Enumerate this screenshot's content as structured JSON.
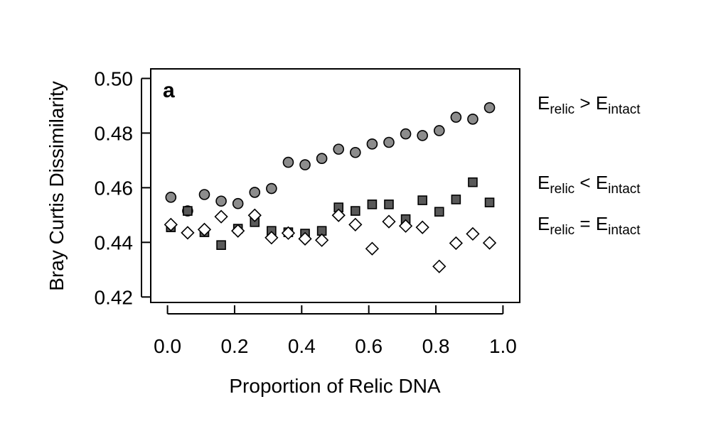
{
  "chart_data": {
    "type": "scatter",
    "panel_label": "a",
    "xlabel": "Proportion of Relic DNA",
    "ylabel": "Bray Curtis Dissimilarity",
    "xlim": [
      -0.05,
      1.05
    ],
    "ylim": [
      0.418,
      0.5035
    ],
    "x_ticks": [
      "0.0",
      "0.2",
      "0.4",
      "0.6",
      "0.8",
      "1.0"
    ],
    "y_ticks": [
      "0.42",
      "0.44",
      "0.46",
      "0.48",
      "0.50"
    ],
    "grid": false,
    "legend_placement": "right",
    "x": [
      0.01,
      0.06,
      0.11,
      0.16,
      0.21,
      0.26,
      0.31,
      0.36,
      0.41,
      0.46,
      0.51,
      0.56,
      0.61,
      0.66,
      0.71,
      0.76,
      0.81,
      0.86,
      0.91,
      0.96
    ],
    "series": [
      {
        "name_main": "E",
        "name_sub1": "relic",
        "name_op": " > E",
        "name_sub2": "intact",
        "marker": "circle",
        "fill": "#8c8c8c",
        "values": [
          0.4565,
          0.4515,
          0.4575,
          0.4551,
          0.4542,
          0.4583,
          0.4597,
          0.4693,
          0.4684,
          0.4707,
          0.4741,
          0.4729,
          0.476,
          0.4766,
          0.4797,
          0.4791,
          0.4809,
          0.4858,
          0.4851,
          0.4893
        ]
      },
      {
        "name_main": "E",
        "name_sub1": "relic",
        "name_op": " < E",
        "name_sub2": "intact",
        "marker": "square",
        "fill": "#595959",
        "values": [
          0.4455,
          0.4515,
          0.4437,
          0.439,
          0.445,
          0.4474,
          0.4442,
          0.4437,
          0.4432,
          0.4442,
          0.4528,
          0.4515,
          0.4539,
          0.4539,
          0.4485,
          0.4554,
          0.4512,
          0.4557,
          0.462,
          0.4546
        ]
      },
      {
        "name_main": "E",
        "name_sub1": "relic",
        "name_op": " = E",
        "name_sub2": "intact",
        "marker": "diamond",
        "fill": "#ffffff",
        "values": [
          0.4465,
          0.4435,
          0.4447,
          0.4494,
          0.4442,
          0.4499,
          0.4417,
          0.4434,
          0.4413,
          0.4408,
          0.4499,
          0.4465,
          0.4377,
          0.4476,
          0.446,
          0.4455,
          0.4312,
          0.4397,
          0.4431,
          0.4398
        ]
      }
    ]
  }
}
